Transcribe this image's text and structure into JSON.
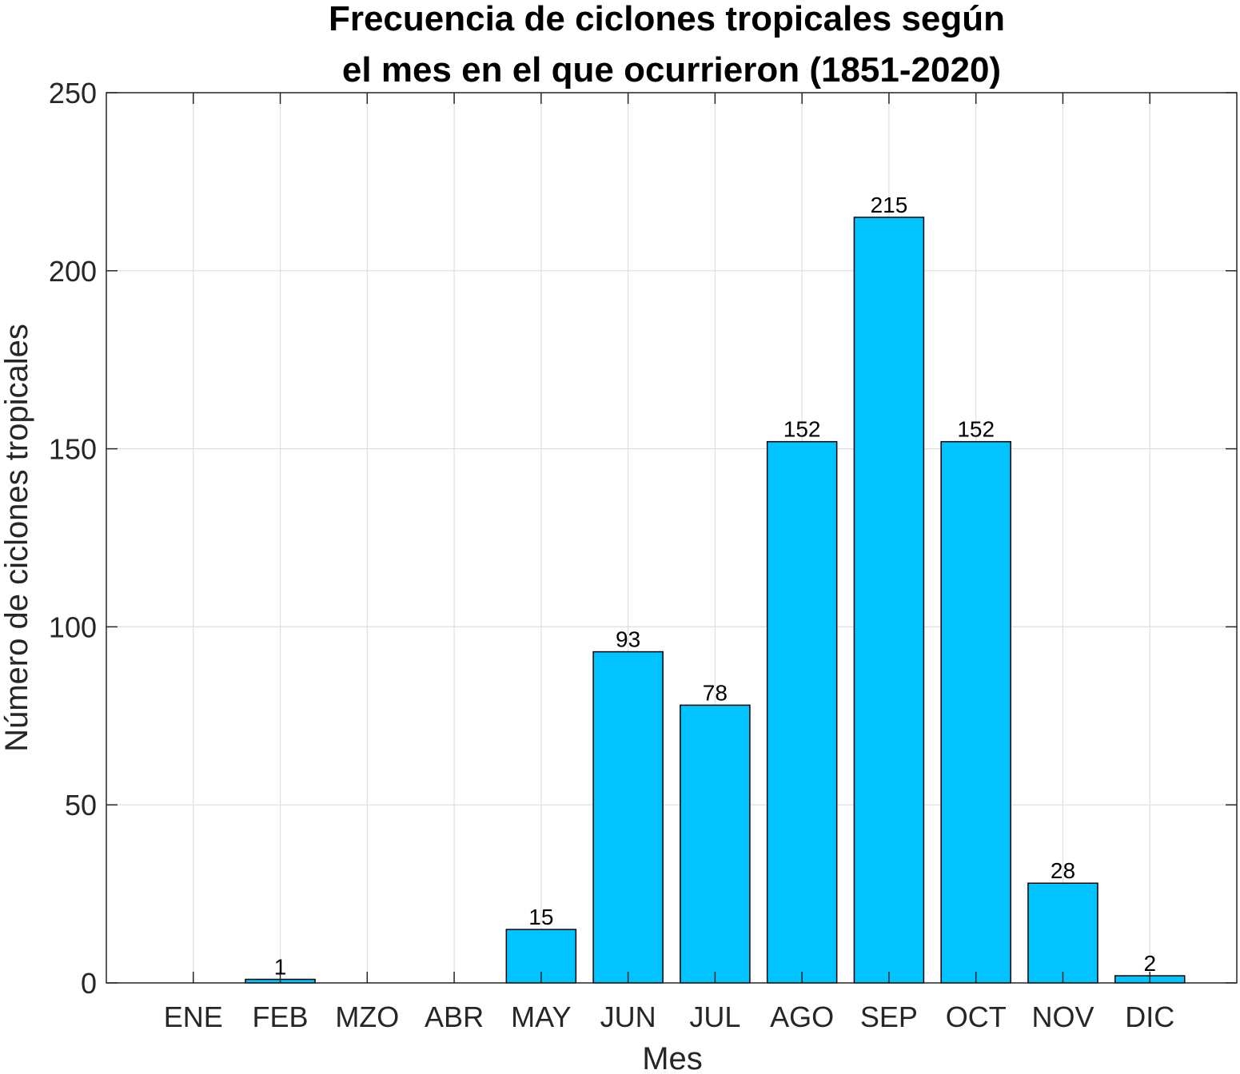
{
  "chart_data": {
    "type": "bar",
    "title": [
      "Frecuencia de ciclones tropicales según",
      "el mes en el que ocurrieron (1851-2020)"
    ],
    "xlabel": "Mes",
    "ylabel": "Número de ciclones tropicales",
    "categories": [
      "ENE",
      "FEB",
      "MZO",
      "ABR",
      "MAY",
      "JUN",
      "JUL",
      "AGO",
      "SEP",
      "OCT",
      "NOV",
      "DIC"
    ],
    "values": [
      0,
      1,
      0,
      0,
      15,
      93,
      78,
      152,
      215,
      152,
      28,
      2
    ],
    "data_labels": [
      "",
      "1",
      "",
      "",
      "15",
      "93",
      "78",
      "152",
      "215",
      "152",
      "28",
      "2"
    ],
    "ylim": [
      0,
      250
    ],
    "yticks": [
      0,
      50,
      100,
      150,
      200,
      250
    ],
    "ytick_labels": [
      "0",
      "50",
      "100",
      "150",
      "200",
      "250"
    ],
    "grid": true,
    "bar_color": "#00C3FF",
    "edge_color": "#000000",
    "grid_color": "#DFDFDF"
  }
}
